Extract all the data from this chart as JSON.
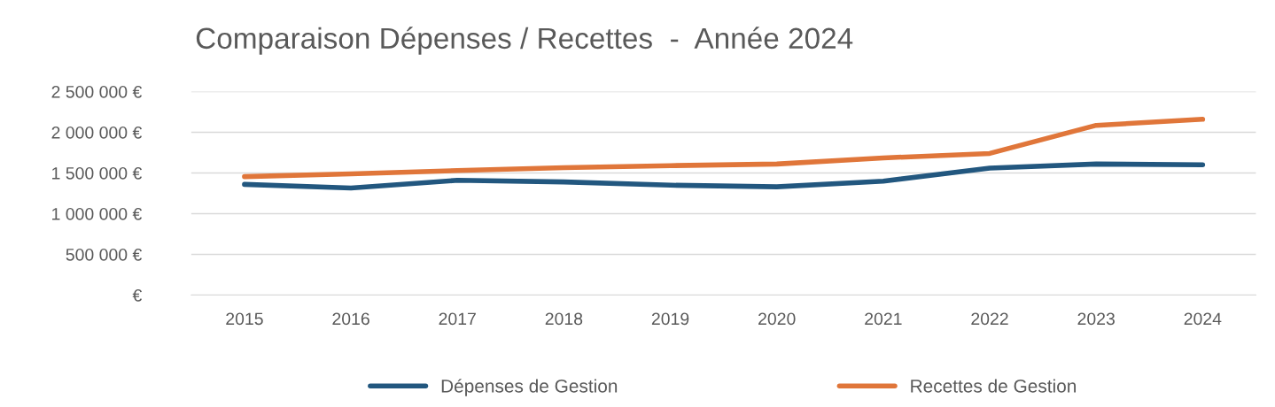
{
  "chart_data": {
    "type": "line",
    "title": "Comparaison Dépenses / Recettes  -  Année 2024",
    "categories": [
      "2015",
      "2016",
      "2017",
      "2018",
      "2019",
      "2020",
      "2021",
      "2022",
      "2023",
      "2024"
    ],
    "series": [
      {
        "name": "Dépenses de Gestion",
        "color": "#22577f",
        "values": [
          1360000,
          1315000,
          1410000,
          1390000,
          1350000,
          1330000,
          1400000,
          1560000,
          1610000,
          1600000
        ]
      },
      {
        "name": "Recettes de Gestion",
        "color": "#e0763a",
        "values": [
          1455000,
          1490000,
          1530000,
          1565000,
          1590000,
          1610000,
          1685000,
          1740000,
          2085000,
          2160000
        ]
      }
    ],
    "ylim": [
      0,
      2500000
    ],
    "yticks": [
      {
        "value": 0,
        "label": "€"
      },
      {
        "value": 500000,
        "label": "500 000 €"
      },
      {
        "value": 1000000,
        "label": "1 000 000 €"
      },
      {
        "value": 1500000,
        "label": "1 500 000 €"
      },
      {
        "value": 2000000,
        "label": "2 000 000 €"
      },
      {
        "value": 2500000,
        "label": "2 500 000 €"
      }
    ],
    "grid": "y",
    "legend": "bottom",
    "marker": "none",
    "line_style": "solid"
  }
}
